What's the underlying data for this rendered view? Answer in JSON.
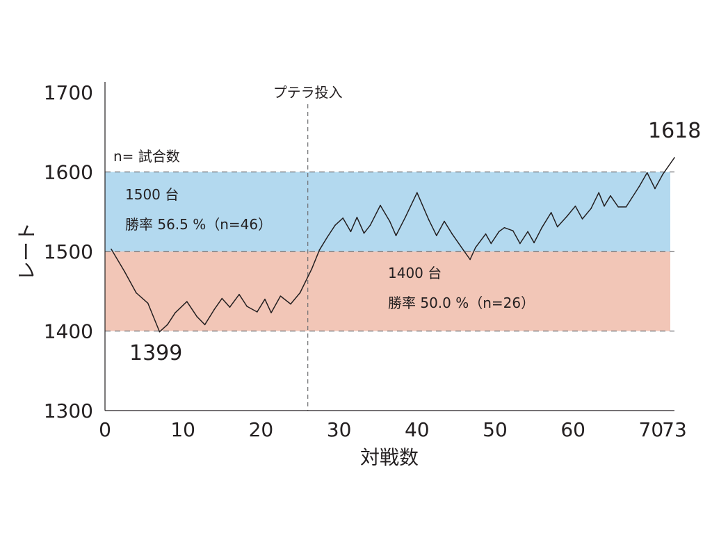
{
  "chart_data": {
    "type": "line",
    "xlabel": "対戦数",
    "ylabel": "レート",
    "xlim": [
      0,
      73
    ],
    "ylim": [
      1300,
      1700
    ],
    "x_ticks": [
      0,
      10,
      20,
      30,
      40,
      50,
      60,
      70,
      73
    ],
    "y_ticks": [
      1300,
      1400,
      1500,
      1600,
      1700
    ],
    "series": [
      {
        "name": "レート",
        "x": [
          0.8,
          2.5,
          4,
          5.5,
          7,
          8,
          9,
          10.5,
          11.8,
          12.8,
          14,
          15,
          16,
          17.2,
          18.2,
          19.5,
          20.5,
          21.3,
          22.5,
          23.8,
          25,
          26.5,
          27.5,
          28.5,
          29.5,
          30.5,
          31.5,
          32.3,
          33.2,
          34,
          35.3,
          36.5,
          37.3,
          38.5,
          40,
          41.5,
          42.5,
          43.5,
          44.5,
          46,
          46.8,
          47.5,
          48.8,
          49.5,
          50.5,
          51.2,
          52.3,
          53.2,
          54.2,
          55,
          56,
          57.2,
          58,
          59.2,
          60.3,
          61.2,
          62.3,
          63.3,
          64,
          64.8,
          65.8,
          66.8,
          68.5,
          69.5,
          70.5,
          71.5,
          73
        ],
        "y": [
          1503,
          1475,
          1448,
          1435,
          1399,
          1408,
          1423,
          1437,
          1418,
          1408,
          1427,
          1441,
          1430,
          1446,
          1431,
          1424,
          1440,
          1423,
          1444,
          1434,
          1448,
          1478,
          1502,
          1518,
          1533,
          1542,
          1525,
          1543,
          1523,
          1533,
          1558,
          1538,
          1520,
          1543,
          1574,
          1540,
          1520,
          1538,
          1522,
          1501,
          1490,
          1505,
          1522,
          1510,
          1525,
          1530,
          1526,
          1510,
          1525,
          1511,
          1530,
          1549,
          1531,
          1544,
          1557,
          1541,
          1554,
          1574,
          1557,
          1570,
          1556,
          1556,
          1582,
          1599,
          1579,
          1597,
          1618
        ]
      }
    ],
    "bands": [
      {
        "range": [
          1500,
          1600
        ],
        "color": "#b3d9ef",
        "label": "1500 台",
        "stat": "勝率 56.5 %（n=46）"
      },
      {
        "range": [
          1400,
          1500
        ],
        "color": "#f2c6b7",
        "label": "1400 台",
        "stat": "勝率 50.0 %（n=26）"
      }
    ],
    "marker": {
      "x": 26,
      "label": "プテラ投入"
    },
    "note": "n= 試合数",
    "min_label": "1399",
    "max_label": "1618",
    "line_color": "#231f20",
    "axis_color": "#231f20"
  }
}
